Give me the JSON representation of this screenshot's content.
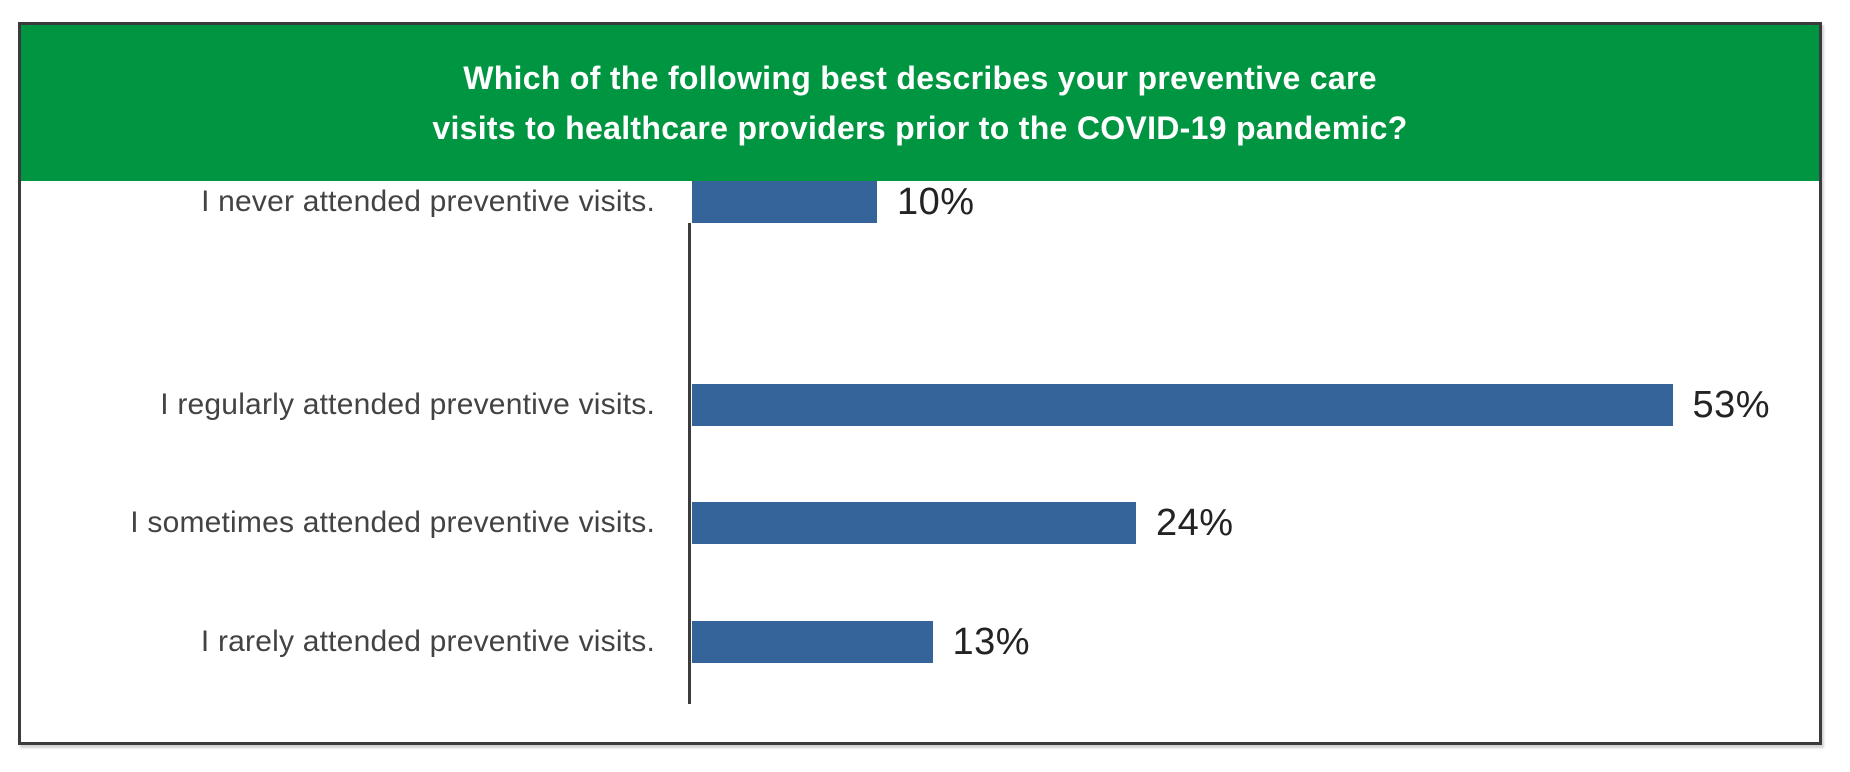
{
  "header": {
    "title_line1": "Which of the following best describes your preventive care",
    "title_line2": "visits to healthcare providers prior to the COVID-19 pandemic?",
    "background_color": "#009641",
    "text_color": "#ffffff"
  },
  "chart_data": {
    "type": "bar",
    "orientation": "horizontal",
    "title": "Which of the following best describes your preventive care visits to healthcare providers prior to the COVID-19 pandemic?",
    "categories": [
      "I regularly attended preventive visits.",
      "I sometimes attended preventive visits.",
      "I rarely attended preventive visits.",
      "I never attended preventive visits."
    ],
    "values": [
      53,
      24,
      13,
      10
    ],
    "value_labels": [
      "53%",
      "24%",
      "13%",
      "10%"
    ],
    "xlim": [
      0,
      62
    ],
    "grid": false,
    "legend": false,
    "bar_color": "#35649B",
    "axis_color": "#3b3b3b",
    "label_color": "#434343",
    "value_label_color": "#232323",
    "frame_border_color": "#3b3b3b"
  }
}
